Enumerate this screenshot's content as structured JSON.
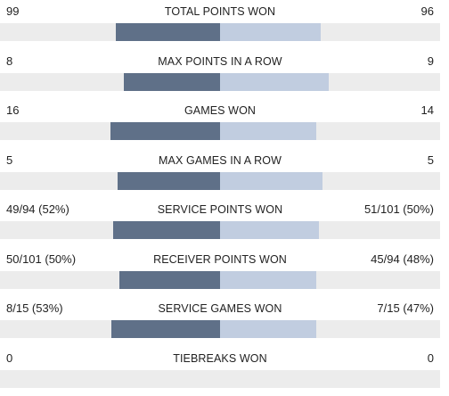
{
  "stats": [
    {
      "label": "TOTAL POINTS WON",
      "left": "99",
      "right": "96",
      "left_share": 0.5077,
      "right_share": 0.4923
    },
    {
      "label": "MAX POINTS IN A ROW",
      "left": "8",
      "right": "9",
      "left_share": 0.4706,
      "right_share": 0.5294
    },
    {
      "label": "GAMES WON",
      "left": "16",
      "right": "14",
      "left_share": 0.5333,
      "right_share": 0.4667
    },
    {
      "label": "MAX GAMES IN A ROW",
      "left": "5",
      "right": "5",
      "left_share": 0.5,
      "right_share": 0.5
    },
    {
      "label": "SERVICE POINTS WON",
      "left": "49/94 (52%)",
      "right": "51/101 (50%)",
      "left_share": 0.52,
      "right_share": 0.48
    },
    {
      "label": "RECEIVER POINTS WON",
      "left": "50/101 (50%)",
      "right": "45/94 (48%)",
      "left_share": 0.49,
      "right_share": 0.47
    },
    {
      "label": "SERVICE GAMES WON",
      "left": "8/15 (53%)",
      "right": "7/15 (47%)",
      "left_share": 0.53,
      "right_share": 0.47
    },
    {
      "label": "TIEBREAKS WON",
      "left": "0",
      "right": "0",
      "left_share": 0,
      "right_share": 0
    }
  ],
  "colors": {
    "left_bar": "#5f7088",
    "right_bar": "#c1cde0",
    "track": "#ececec"
  }
}
